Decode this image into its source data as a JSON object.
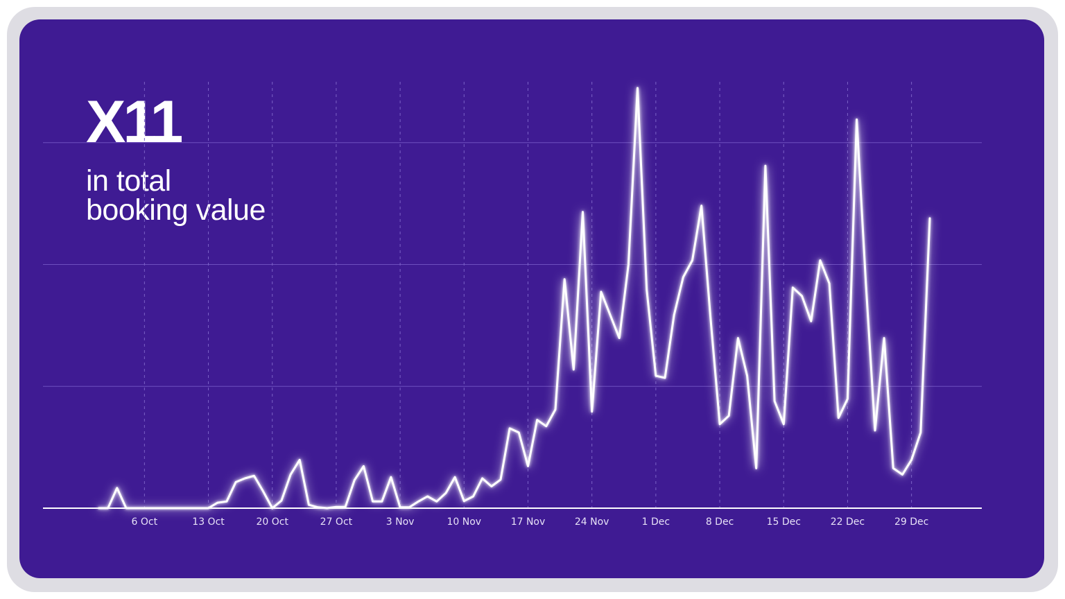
{
  "headline": {
    "multiplier": "X11",
    "line1": "in total",
    "line2": "booking value"
  },
  "colors": {
    "background": "#3f1b93",
    "line": "#ffffff",
    "grid": "#6e4fbf",
    "frame": "#dedde3"
  },
  "chart_data": {
    "type": "line",
    "x_start": "2023-10-01",
    "x_end": "2023-12-31",
    "x_tick_labels": [
      "6 Oct",
      "13 Oct",
      "20 Oct",
      "27 Oct",
      "3 Nov",
      "10 Nov",
      "17 Nov",
      "24 Nov",
      "1 Dec",
      "8 Dec",
      "15 Dec",
      "22 Dec",
      "29 Dec"
    ],
    "x_tick_dates": [
      "2023-10-06",
      "2023-10-13",
      "2023-10-20",
      "2023-10-27",
      "2023-11-03",
      "2023-11-10",
      "2023-11-17",
      "2023-11-24",
      "2023-12-01",
      "2023-12-08",
      "2023-12-15",
      "2023-12-22",
      "2023-12-29"
    ],
    "ylim": [
      0,
      100
    ],
    "grid": true,
    "y_gridlines": [
      29,
      58,
      87
    ],
    "series": [
      {
        "values": [
          0,
          0,
          4.8,
          0,
          0,
          0,
          0,
          0,
          0,
          0,
          0,
          0,
          0,
          1.3,
          1.6,
          6.2,
          7.1,
          7.7,
          4,
          0,
          1.8,
          8,
          11.5,
          0.8,
          0.2,
          0,
          0.3,
          0.3,
          6.7,
          10,
          1.6,
          1.6,
          7.4,
          0.2,
          0.2,
          1.6,
          2.8,
          1.6,
          3.6,
          7.4,
          1.7,
          2.8,
          7.1,
          5.2,
          6.8,
          19,
          18,
          10,
          21,
          19.5,
          23.5,
          54.5,
          33,
          70.5,
          23,
          51.5,
          46,
          40.5,
          58,
          100,
          52,
          31.5,
          31,
          46,
          55,
          59,
          72,
          45,
          20,
          22,
          40.5,
          31.5,
          9.5,
          81.5,
          25.5,
          20,
          52.5,
          50.5,
          44.5,
          59,
          53.5,
          21.5,
          26,
          92.5,
          53.5,
          18.5,
          40.5,
          9.5,
          8,
          11.5,
          18,
          69
        ]
      }
    ]
  }
}
